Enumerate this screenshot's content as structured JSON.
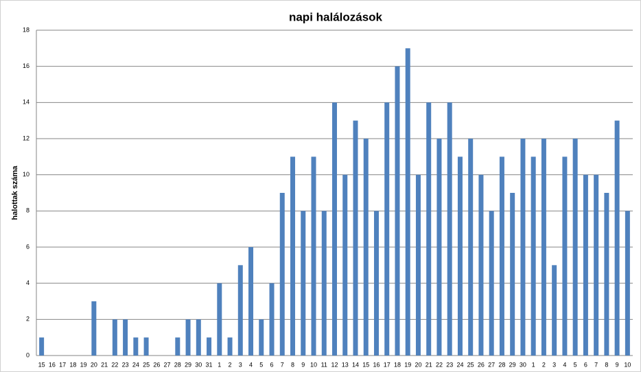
{
  "chart_data": {
    "type": "bar",
    "title": "napi halálozások",
    "y_label": "halottak száma",
    "categories": [
      "15",
      "16",
      "17",
      "18",
      "19",
      "20",
      "21",
      "22",
      "23",
      "24",
      "25",
      "26",
      "27",
      "28",
      "29",
      "30",
      "31",
      "1",
      "2",
      "3",
      "4",
      "5",
      "6",
      "7",
      "8",
      "9",
      "10",
      "11",
      "12",
      "13",
      "14",
      "15",
      "16",
      "17",
      "18",
      "19",
      "20",
      "21",
      "22",
      "23",
      "24",
      "25",
      "26",
      "27",
      "28",
      "29",
      "30",
      "1",
      "2",
      "3",
      "4",
      "5",
      "6",
      "7",
      "8",
      "9",
      "10"
    ],
    "values": [
      1,
      0,
      0,
      0,
      0,
      3,
      0,
      2,
      2,
      1,
      1,
      0,
      0,
      1,
      2,
      2,
      1,
      4,
      1,
      5,
      6,
      2,
      4,
      9,
      11,
      8,
      11,
      8,
      14,
      10,
      13,
      12,
      8,
      14,
      16,
      17,
      10,
      14,
      12,
      14,
      11,
      12,
      10,
      8,
      11,
      9,
      12,
      11,
      12,
      5,
      11,
      12,
      10,
      10,
      9,
      13,
      8
    ],
    "color": "#4f81bd",
    "ylim": [
      0,
      18
    ],
    "yticks": [
      0,
      2,
      4,
      6,
      8,
      10,
      12,
      14,
      16,
      18
    ],
    "grid": true
  }
}
